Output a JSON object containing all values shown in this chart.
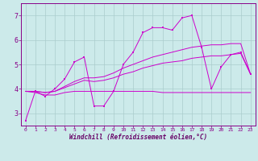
{
  "background_color": "#cceaea",
  "grid_color": "#aacccc",
  "line_color": "#cc00cc",
  "xlabel": "Windchill (Refroidissement éolien,°C)",
  "xlim": [
    -0.5,
    23.5
  ],
  "ylim": [
    2.5,
    7.5
  ],
  "yticks": [
    3,
    4,
    5,
    6,
    7
  ],
  "xticks": [
    0,
    1,
    2,
    3,
    4,
    5,
    6,
    7,
    8,
    9,
    10,
    11,
    12,
    13,
    14,
    15,
    16,
    17,
    18,
    19,
    20,
    21,
    22,
    23
  ],
  "line1_x": [
    0,
    1,
    2,
    3,
    4,
    5,
    6,
    7,
    8,
    9,
    10,
    11,
    12,
    13,
    14,
    15,
    16,
    17,
    18,
    19,
    20,
    21,
    22,
    23
  ],
  "line1_y": [
    2.7,
    3.9,
    3.7,
    4.0,
    4.4,
    5.1,
    5.3,
    3.3,
    3.3,
    3.9,
    5.0,
    5.5,
    6.3,
    6.5,
    6.5,
    6.4,
    6.9,
    7.0,
    5.7,
    4.0,
    4.9,
    5.4,
    5.5,
    4.6
  ],
  "line2_x": [
    0,
    1,
    2,
    3,
    4,
    5,
    6,
    7,
    8,
    9,
    10,
    11,
    12,
    13,
    14,
    15,
    16,
    17,
    18,
    19,
    20,
    21,
    22,
    23
  ],
  "line2_y": [
    3.9,
    3.85,
    3.75,
    3.75,
    3.85,
    3.9,
    3.9,
    3.9,
    3.9,
    3.9,
    3.9,
    3.9,
    3.9,
    3.9,
    3.85,
    3.85,
    3.85,
    3.85,
    3.85,
    3.85,
    3.85,
    3.85,
    3.85,
    3.85
  ],
  "line3_x": [
    0,
    1,
    2,
    3,
    4,
    5,
    6,
    7,
    8,
    9,
    10,
    11,
    12,
    13,
    14,
    15,
    16,
    17,
    18,
    19,
    20,
    21,
    22,
    23
  ],
  "line3_y": [
    3.9,
    3.9,
    3.85,
    3.9,
    4.05,
    4.2,
    4.35,
    4.3,
    4.35,
    4.45,
    4.6,
    4.7,
    4.85,
    4.95,
    5.05,
    5.1,
    5.15,
    5.25,
    5.3,
    5.35,
    5.35,
    5.4,
    5.45,
    4.6
  ],
  "line4_x": [
    0,
    1,
    2,
    3,
    4,
    5,
    6,
    7,
    8,
    9,
    10,
    11,
    12,
    13,
    14,
    15,
    16,
    17,
    18,
    19,
    20,
    21,
    22,
    23
  ],
  "line4_y": [
    3.9,
    3.9,
    3.85,
    3.9,
    4.1,
    4.3,
    4.45,
    4.45,
    4.5,
    4.65,
    4.85,
    5.0,
    5.15,
    5.3,
    5.4,
    5.5,
    5.6,
    5.7,
    5.75,
    5.8,
    5.8,
    5.85,
    5.85,
    4.6
  ]
}
